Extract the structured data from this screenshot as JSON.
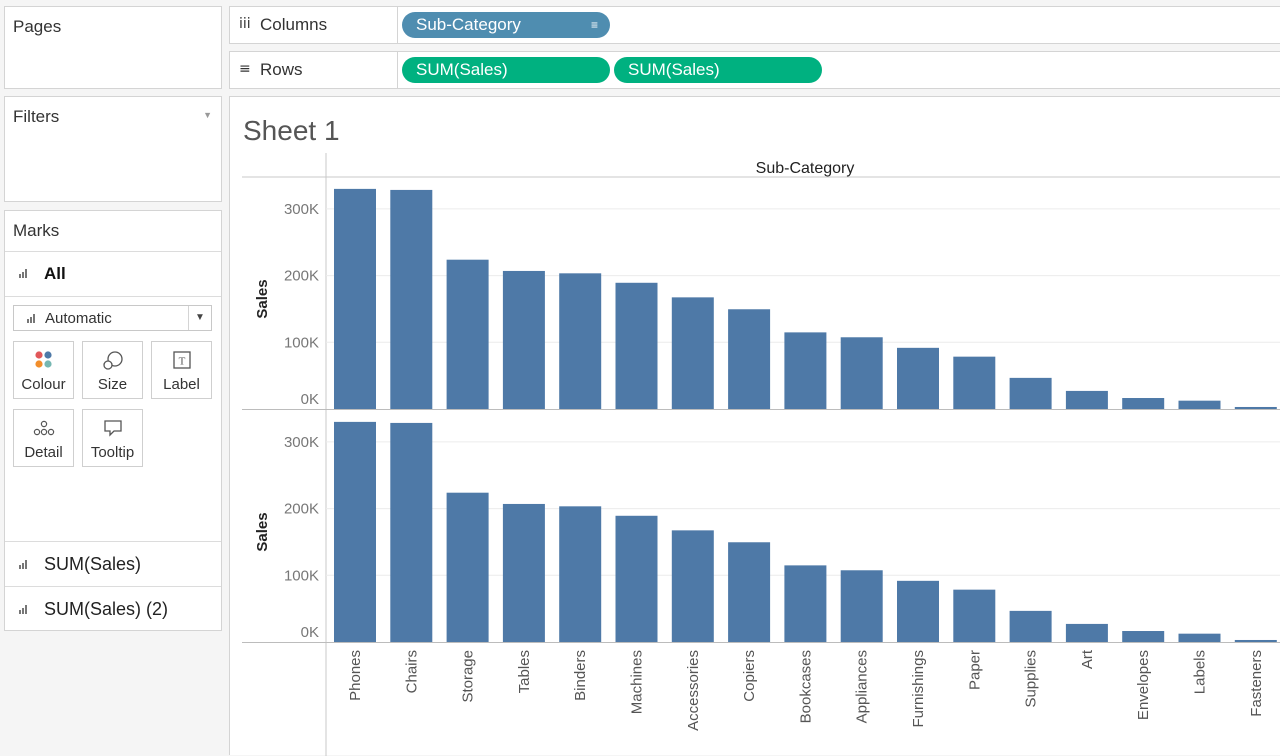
{
  "pages": {
    "title": "Pages"
  },
  "filters": {
    "title": "Filters"
  },
  "marks": {
    "title": "Marks",
    "all_label": "All",
    "mark_type": "Automatic",
    "buttons": [
      {
        "label": "Colour",
        "icon": "colour-icon"
      },
      {
        "label": "Size",
        "icon": "size-icon"
      },
      {
        "label": "Label",
        "icon": "label-icon"
      },
      {
        "label": "Detail",
        "icon": "detail-icon"
      },
      {
        "label": "Tooltip",
        "icon": "tooltip-icon"
      }
    ],
    "cards": [
      "SUM(Sales)",
      "SUM(Sales) (2)"
    ]
  },
  "shelves": {
    "columns": {
      "label": "Columns",
      "pills": [
        "Sub-Category"
      ]
    },
    "rows": {
      "label": "Rows",
      "pills": [
        "SUM(Sales)",
        "SUM(Sales)"
      ]
    }
  },
  "sheet": {
    "title": "Sheet 1"
  },
  "chart_data": {
    "type": "bar",
    "title": "",
    "header": "Sub-Category",
    "ylabel": "Sales",
    "ylim": [
      0,
      340000
    ],
    "yticks": [
      0,
      100000,
      200000,
      300000
    ],
    "ytick_labels": [
      "0K",
      "100K",
      "200K",
      "300K"
    ],
    "bar_color": "#4e79a7",
    "categories": [
      "Phones",
      "Chairs",
      "Storage",
      "Tables",
      "Binders",
      "Machines",
      "Accessories",
      "Copiers",
      "Bookcases",
      "Appliances",
      "Furnishings",
      "Paper",
      "Supplies",
      "Art",
      "Envelopes",
      "Labels",
      "Fasteners"
    ],
    "series": [
      {
        "values": [
          330007,
          328449,
          223844,
          206966,
          203413,
          189239,
          167380,
          149528,
          114880,
          107532,
          91705,
          78479,
          46674,
          27119,
          16476,
          12486,
          3024
        ]
      },
      {
        "values": [
          330007,
          328449,
          223844,
          206966,
          203413,
          189239,
          167380,
          149528,
          114880,
          107532,
          91705,
          78479,
          46674,
          27119,
          16476,
          12486,
          3024
        ]
      }
    ]
  }
}
